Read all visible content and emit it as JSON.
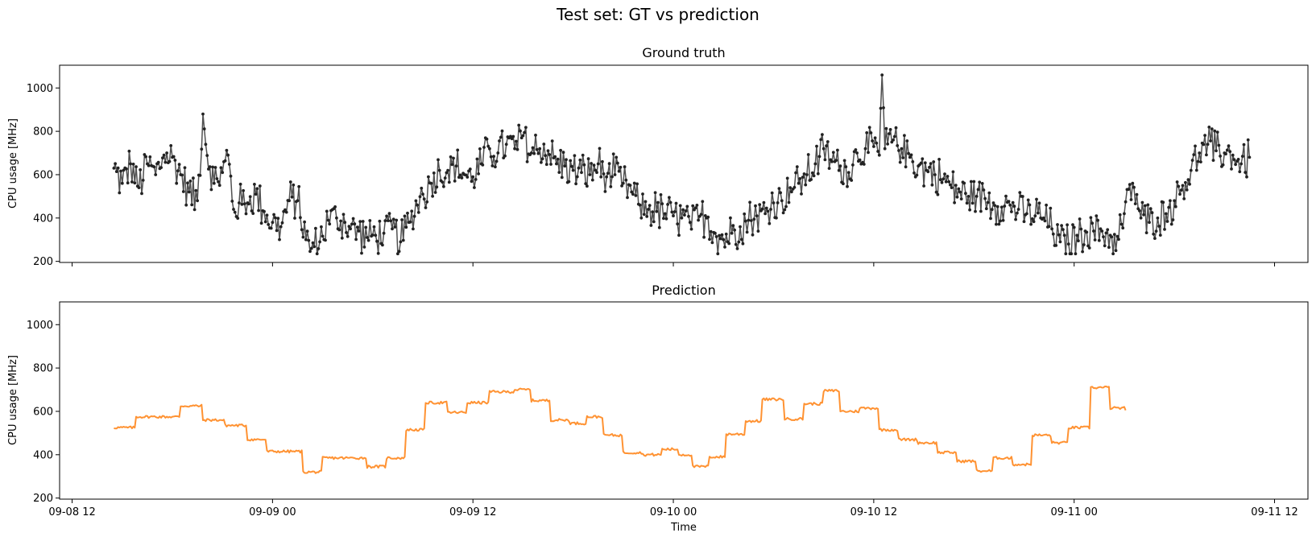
{
  "figure": {
    "title": "Test set: GT vs prediction"
  },
  "chart_data": [
    {
      "type": "line",
      "title": "Ground truth",
      "xlabel": "",
      "ylabel": "CPU usage [MHz]",
      "xlim": [
        "2024-09-08T11:15",
        "2024-09-11T14:00"
      ],
      "ylim": [
        195,
        1105
      ],
      "yticks": [
        200,
        400,
        600,
        800,
        1000
      ],
      "x_start": "2024-09-08T14:30",
      "x_step_minutes": 5,
      "color": "#333333",
      "markers": true,
      "x_ticklabels_visible": false,
      "grid": false,
      "keypoints": [
        [
          0,
          630
        ],
        [
          6,
          560
        ],
        [
          12,
          650
        ],
        [
          18,
          540
        ],
        [
          24,
          650
        ],
        [
          30,
          600
        ],
        [
          36,
          690
        ],
        [
          42,
          680
        ],
        [
          48,
          600
        ],
        [
          54,
          520
        ],
        [
          60,
          480
        ],
        [
          64,
          880
        ],
        [
          66,
          740
        ],
        [
          72,
          560
        ],
        [
          78,
          610
        ],
        [
          82,
          690
        ],
        [
          86,
          440
        ],
        [
          90,
          470
        ],
        [
          96,
          470
        ],
        [
          102,
          510
        ],
        [
          108,
          430
        ],
        [
          114,
          380
        ],
        [
          120,
          360
        ],
        [
          126,
          480
        ],
        [
          132,
          480
        ],
        [
          138,
          300
        ],
        [
          142,
          260
        ],
        [
          148,
          290
        ],
        [
          154,
          390
        ],
        [
          160,
          400
        ],
        [
          166,
          380
        ],
        [
          170,
          350
        ],
        [
          176,
          340
        ],
        [
          182,
          310
        ],
        [
          188,
          320
        ],
        [
          194,
          330
        ],
        [
          200,
          350
        ],
        [
          206,
          290
        ],
        [
          212,
          380
        ],
        [
          218,
          460
        ],
        [
          222,
          510
        ],
        [
          228,
          560
        ],
        [
          234,
          620
        ],
        [
          240,
          620
        ],
        [
          246,
          640
        ],
        [
          252,
          600
        ],
        [
          258,
          590
        ],
        [
          264,
          650
        ],
        [
          270,
          720
        ],
        [
          276,
          700
        ],
        [
          282,
          740
        ],
        [
          288,
          720
        ],
        [
          294,
          780
        ],
        [
          300,
          700
        ],
        [
          306,
          720
        ],
        [
          312,
          710
        ],
        [
          318,
          650
        ],
        [
          324,
          640
        ],
        [
          330,
          620
        ],
        [
          336,
          610
        ],
        [
          342,
          600
        ],
        [
          348,
          650
        ],
        [
          354,
          590
        ],
        [
          360,
          600
        ],
        [
          366,
          560
        ],
        [
          372,
          520
        ],
        [
          378,
          460
        ],
        [
          384,
          440
        ],
        [
          390,
          430
        ],
        [
          396,
          420
        ],
        [
          402,
          410
        ],
        [
          408,
          400
        ],
        [
          414,
          380
        ],
        [
          420,
          390
        ],
        [
          426,
          400
        ],
        [
          432,
          330
        ],
        [
          438,
          300
        ],
        [
          444,
          330
        ],
        [
          450,
          360
        ],
        [
          456,
          390
        ],
        [
          462,
          410
        ],
        [
          468,
          420
        ],
        [
          474,
          470
        ],
        [
          480,
          480
        ],
        [
          486,
          540
        ],
        [
          492,
          560
        ],
        [
          498,
          600
        ],
        [
          504,
          650
        ],
        [
          510,
          720
        ],
        [
          516,
          660
        ],
        [
          522,
          640
        ],
        [
          528,
          610
        ],
        [
          534,
          700
        ],
        [
          540,
          720
        ],
        [
          546,
          730
        ],
        [
          550,
          690
        ],
        [
          552,
          1060
        ],
        [
          554,
          720
        ],
        [
          560,
          760
        ],
        [
          566,
          720
        ],
        [
          572,
          680
        ],
        [
          578,
          640
        ],
        [
          584,
          620
        ],
        [
          590,
          600
        ],
        [
          596,
          580
        ],
        [
          602,
          540
        ],
        [
          608,
          520
        ],
        [
          614,
          500
        ],
        [
          620,
          500
        ],
        [
          626,
          490
        ],
        [
          632,
          470
        ],
        [
          638,
          450
        ],
        [
          644,
          460
        ],
        [
          650,
          440
        ],
        [
          656,
          420
        ],
        [
          662,
          410
        ],
        [
          668,
          400
        ],
        [
          674,
          350
        ],
        [
          680,
          290
        ],
        [
          686,
          280
        ],
        [
          692,
          320
        ],
        [
          698,
          340
        ],
        [
          704,
          340
        ],
        [
          710,
          340
        ],
        [
          716,
          320
        ],
        [
          720,
          250
        ],
        [
          726,
          420
        ],
        [
          732,
          560
        ],
        [
          738,
          400
        ],
        [
          744,
          380
        ],
        [
          750,
          400
        ],
        [
          756,
          420
        ],
        [
          762,
          480
        ],
        [
          768,
          550
        ],
        [
          774,
          620
        ],
        [
          780,
          700
        ],
        [
          786,
          740
        ],
        [
          792,
          710
        ],
        [
          798,
          700
        ],
        [
          804,
          690
        ],
        [
          810,
          650
        ],
        [
          816,
          680
        ]
      ]
    },
    {
      "type": "line",
      "title": "Prediction",
      "xlabel": "Time",
      "ylabel": "CPU usage [MHz]",
      "xlim": [
        "2024-09-08T11:15",
        "2024-09-11T14:00"
      ],
      "ylim": [
        195,
        1105
      ],
      "yticks": [
        200,
        400,
        600,
        800,
        1000
      ],
      "xticks": [
        "2024-09-08T12:00",
        "2024-09-09T00:00",
        "2024-09-09T12:00",
        "2024-09-10T00:00",
        "2024-09-10T12:00",
        "2024-09-11T00:00",
        "2024-09-11T12:00"
      ],
      "xticklabels": [
        "09-08 12",
        "09-09 00",
        "09-09 12",
        "09-10 00",
        "09-10 12",
        "09-11 00",
        "09-11 12"
      ],
      "x_start": "2024-09-08T14:30",
      "x_step_minutes": 5,
      "color": "#ff7f0e",
      "markers": false,
      "grid": false,
      "steps": [
        [
          0,
          525
        ],
        [
          16,
          575
        ],
        [
          48,
          625
        ],
        [
          64,
          560
        ],
        [
          80,
          535
        ],
        [
          96,
          470
        ],
        [
          110,
          415
        ],
        [
          136,
          320
        ],
        [
          150,
          385
        ],
        [
          182,
          345
        ],
        [
          196,
          385
        ],
        [
          210,
          515
        ],
        [
          224,
          640
        ],
        [
          240,
          595
        ],
        [
          254,
          640
        ],
        [
          270,
          690
        ],
        [
          288,
          700
        ],
        [
          300,
          650
        ],
        [
          314,
          560
        ],
        [
          328,
          545
        ],
        [
          340,
          575
        ],
        [
          352,
          490
        ],
        [
          366,
          410
        ],
        [
          380,
          400
        ],
        [
          394,
          425
        ],
        [
          406,
          400
        ],
        [
          416,
          345
        ],
        [
          428,
          390
        ],
        [
          440,
          495
        ],
        [
          454,
          555
        ],
        [
          466,
          655
        ],
        [
          482,
          565
        ],
        [
          496,
          635
        ],
        [
          510,
          695
        ],
        [
          522,
          600
        ],
        [
          536,
          615
        ],
        [
          550,
          515
        ],
        [
          564,
          470
        ],
        [
          578,
          455
        ],
        [
          592,
          410
        ],
        [
          606,
          370
        ],
        [
          620,
          325
        ],
        [
          632,
          385
        ],
        [
          646,
          355
        ],
        [
          660,
          490
        ],
        [
          674,
          455
        ],
        [
          686,
          525
        ],
        [
          702,
          710
        ],
        [
          716,
          615
        ],
        [
          727,
          605
        ]
      ]
    }
  ]
}
